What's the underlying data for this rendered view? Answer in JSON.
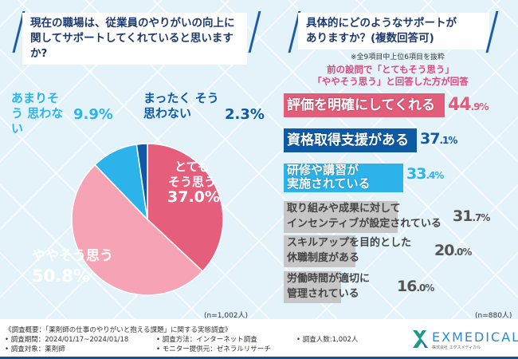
{
  "left": {
    "question": [
      "現在の職場は、従業員のやりがいの向上に",
      "関してサポートしてくれていると思いますか?"
    ],
    "n": "(n=1,002人)"
  },
  "right": {
    "question": [
      "具体的にどのようなサポートが",
      "ありますか？(複数回答可)"
    ],
    "note": "※全9項目中上位6項目を抜粋",
    "condition": [
      "前の設問で「とてもそう思う」",
      "「ややそう思う」と回答した方が回答"
    ],
    "n": "(n=880人)"
  },
  "chart_data": [
    {
      "type": "pie",
      "title": "現在の職場は、従業員のやりがいの向上に関してサポートしてくれていると思いますか?",
      "slices": [
        {
          "label": "とても そう思う",
          "value": 37.0,
          "color": "#e55f7c",
          "text": "37.0%"
        },
        {
          "label": "ややそう思う",
          "value": 50.8,
          "color": "#f6a3b6",
          "text": "50.8%"
        },
        {
          "label": "あまりそう 思わない",
          "value": 9.9,
          "color": "#2cb4ea",
          "text": "9.9%"
        },
        {
          "label": "まったく そう思わない",
          "value": 2.3,
          "color": "#0e5aa6",
          "text": "2.3%"
        }
      ]
    },
    {
      "type": "bar",
      "title": "具体的にどのようなサポートがありますか？(複数回答可)",
      "categories": [
        [
          "評価を明確にしてくれる"
        ],
        [
          "資格取得支援がある"
        ],
        [
          "研修や講習が",
          "実施されている"
        ],
        [
          "取り組みや成果に対して",
          "インセンティブが設定されている"
        ],
        [
          "スキルアップを目的とした",
          "休職制度がある"
        ],
        [
          "労働時間が適切に",
          "管理されている"
        ]
      ],
      "values": [
        44.9,
        37.1,
        33.4,
        31.7,
        20.0,
        16.0
      ],
      "colors": [
        "#e25d7a",
        "#0f5aa5",
        "#2bb3ea",
        "#c6c6c6",
        "#c6c6c6",
        "#c6c6c6"
      ],
      "value_colors": [
        "#e25d7a",
        "#0f5aa5",
        "#2bb3ea",
        "#555555",
        "#555555",
        "#555555"
      ],
      "unit": "%"
    }
  ],
  "footer": {
    "title": "《調査概要：「薬剤師の仕事のやりがいと抱える課題」に関する実態調査》",
    "items": [
      "• 調査期間：2024/01/17~2024/01/18",
      "• 調査方法：インターネット調査",
      "• 調査人数:1,002人",
      "• 調査対象：薬剤師",
      "• モニター提供元：ゼネラルリサーチ"
    ],
    "logo": "EXMEDICAL",
    "logo_sub": "株式会社 エクスメディカル"
  }
}
